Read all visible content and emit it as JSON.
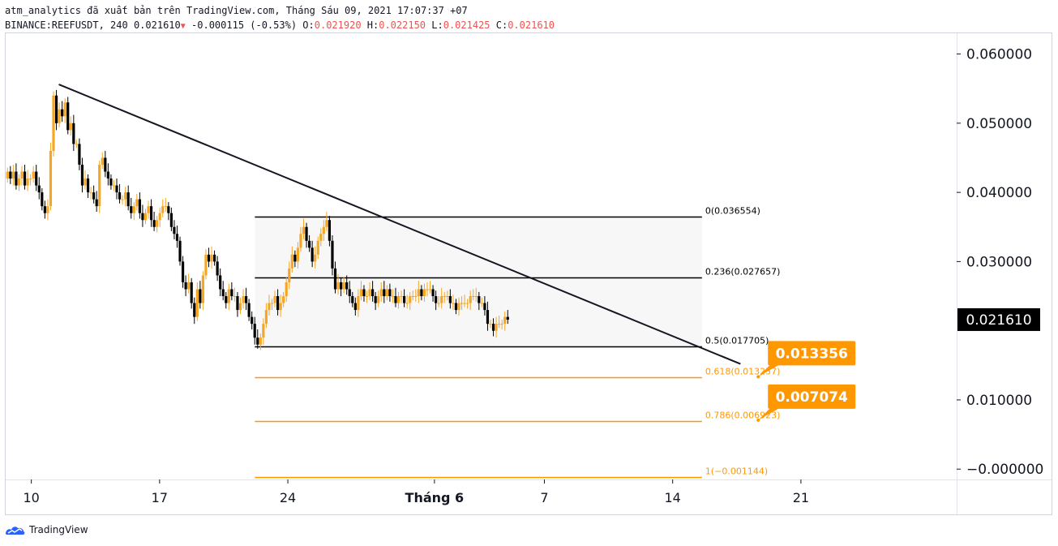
{
  "header": {
    "line1": "atm_analytics đã xuất bản trên TradingView.com, Tháng Sáu 09, 2021 17:07:37 +07",
    "symbol": "BINANCE:REEFUSDT, 240",
    "last": "0.021610",
    "change_arrow": "▼",
    "change": "-0.000115 (-0.53%)",
    "o_label": "O:",
    "o": "0.021920",
    "h_label": "H:",
    "h": "0.022150",
    "l_label": "L:",
    "l": "0.021425",
    "c_label": "C:",
    "c": "0.021610"
  },
  "brand": {
    "name": "TradingView"
  },
  "colors": {
    "bull": "#f5a623",
    "bear": "#000000",
    "fib_black": "#000000",
    "fib_orange": "#ff9800",
    "fib_fill": "#f7f7f7",
    "callout": "#ff9800",
    "price_tag": "#000000"
  },
  "chart_data": {
    "type": "candlestick",
    "symbol": "BINANCE:REEFUSDT",
    "interval": "240",
    "y_axis": {
      "ticks": [
        "0.060000",
        "0.050000",
        "0.040000",
        "0.030000",
        "0.010000",
        "−0.000000"
      ],
      "tick_values": [
        0.06,
        0.05,
        0.04,
        0.03,
        0.01,
        0.0
      ],
      "ylim": [
        -0.0015,
        0.063
      ]
    },
    "x_axis": {
      "ticks": [
        {
          "label": "10",
          "day": 0,
          "bold": false
        },
        {
          "label": "17",
          "day": 7,
          "bold": false
        },
        {
          "label": "24",
          "day": 14,
          "bold": false
        },
        {
          "label": "Tháng 6",
          "day": 22,
          "bold": true
        },
        {
          "label": "7",
          "day": 28,
          "bold": false
        },
        {
          "label": "14",
          "day": 35,
          "bold": false
        },
        {
          "label": "21",
          "day": 42,
          "bold": false
        }
      ],
      "xlim": [
        -1.4,
        50.5
      ]
    },
    "current_price": {
      "value": 0.02161,
      "label": "0.021610"
    },
    "fib_levels": [
      {
        "ratio": "0",
        "value": 0.036554,
        "label": "0(0.036554)",
        "color": "black"
      },
      {
        "ratio": "0.236",
        "value": 0.027657,
        "label": "0.236(0.027657)",
        "color": "black"
      },
      {
        "ratio": "0.5",
        "value": 0.017705,
        "label": "0.5(0.017705)",
        "color": "black"
      },
      {
        "ratio": "0.618",
        "value": 0.013257,
        "label": "0.618(0.013257)",
        "color": "orange"
      },
      {
        "ratio": "0.786",
        "value": 0.006923,
        "label": "0.786(0.006923)",
        "color": "orange"
      },
      {
        "ratio": "1",
        "value": -0.001144,
        "label": "1(−0.001144)",
        "color": "orange"
      }
    ],
    "fib_range_days": [
      12.2,
      36.6
    ],
    "trendline": {
      "from": {
        "day": 1.5,
        "value": 0.0556
      },
      "to": {
        "day": 38.7,
        "value": 0.0152
      }
    },
    "callouts": [
      {
        "label": "0.013356",
        "value": 0.013356,
        "day": 40.2
      },
      {
        "label": "0.007074",
        "value": 0.007074,
        "day": 40.2
      }
    ],
    "candles_close": [
      0.043,
      0.042,
      0.043,
      0.041,
      0.042,
      0.043,
      0.041,
      0.042,
      0.042,
      0.043,
      0.041,
      0.04,
      0.038,
      0.037,
      0.038,
      0.046,
      0.054,
      0.05,
      0.052,
      0.051,
      0.053,
      0.049,
      0.05,
      0.047,
      0.047,
      0.044,
      0.041,
      0.042,
      0.04,
      0.04,
      0.039,
      0.038,
      0.044,
      0.045,
      0.043,
      0.042,
      0.041,
      0.041,
      0.04,
      0.039,
      0.039,
      0.04,
      0.038,
      0.037,
      0.038,
      0.039,
      0.037,
      0.036,
      0.037,
      0.038,
      0.036,
      0.035,
      0.036,
      0.037,
      0.038,
      0.038,
      0.037,
      0.035,
      0.034,
      0.033,
      0.03,
      0.027,
      0.026,
      0.027,
      0.024,
      0.022,
      0.026,
      0.024,
      0.028,
      0.031,
      0.03,
      0.031,
      0.03,
      0.028,
      0.026,
      0.025,
      0.024,
      0.026,
      0.025,
      0.025,
      0.023,
      0.024,
      0.025,
      0.024,
      0.022,
      0.021,
      0.019,
      0.018,
      0.019,
      0.021,
      0.023,
      0.024,
      0.024,
      0.025,
      0.023,
      0.024,
      0.025,
      0.027,
      0.029,
      0.031,
      0.03,
      0.032,
      0.034,
      0.035,
      0.033,
      0.032,
      0.03,
      0.031,
      0.033,
      0.034,
      0.035,
      0.036,
      0.033,
      0.029,
      0.026,
      0.027,
      0.026,
      0.027,
      0.026,
      0.025,
      0.024,
      0.023,
      0.025,
      0.026,
      0.025,
      0.025,
      0.026,
      0.025,
      0.024,
      0.025,
      0.026,
      0.025,
      0.026,
      0.025,
      0.025,
      0.024,
      0.025,
      0.025,
      0.024,
      0.024,
      0.025,
      0.025,
      0.025,
      0.026,
      0.025,
      0.026,
      0.026,
      0.026,
      0.025,
      0.024,
      0.024,
      0.025,
      0.025,
      0.025,
      0.024,
      0.024,
      0.023,
      0.024,
      0.024,
      0.024,
      0.024,
      0.025,
      0.025,
      0.025,
      0.024,
      0.024,
      0.023,
      0.021,
      0.021,
      0.02,
      0.021,
      0.021,
      0.021,
      0.022,
      0.0216
    ]
  }
}
